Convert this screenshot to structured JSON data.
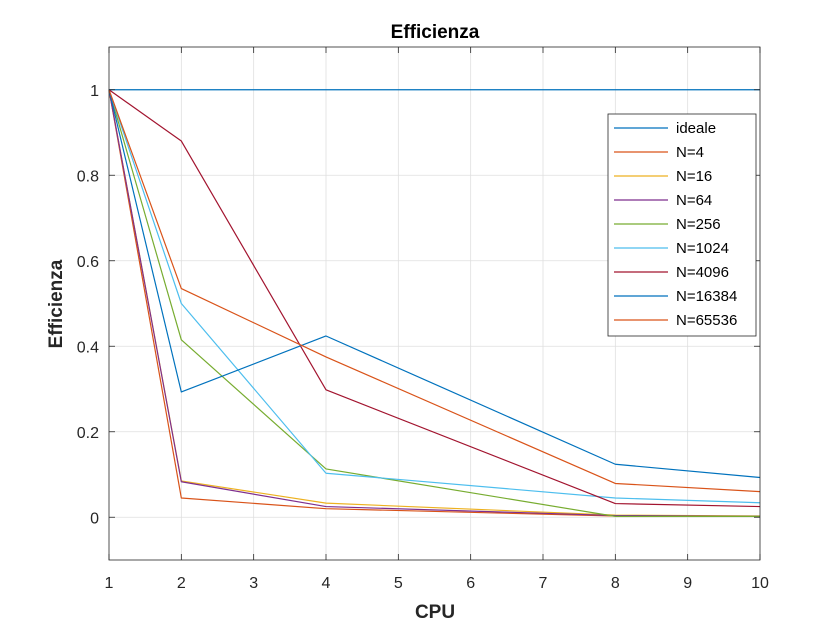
{
  "chart_data": {
    "type": "line",
    "title": "Efficienza",
    "xlabel": "CPU",
    "ylabel": "Efficienza",
    "xlim": [
      1,
      10
    ],
    "ylim": [
      -0.1,
      1.1
    ],
    "xticks": [
      1,
      2,
      3,
      4,
      5,
      6,
      7,
      8,
      9,
      10
    ],
    "yticks": [
      0,
      0.2,
      0.4,
      0.6,
      0.8,
      1
    ],
    "ytick_labels": [
      "0",
      "0.2",
      "0.4",
      "0.6",
      "0.8",
      "1"
    ],
    "grid": true,
    "legend_position": "top-right",
    "series": [
      {
        "name": "ideale",
        "color": "#0072BD",
        "x": [
          1,
          10
        ],
        "y": [
          1,
          1
        ]
      },
      {
        "name": "N=4",
        "color": "#D95319",
        "x": [
          1,
          2,
          4,
          8,
          10
        ],
        "y": [
          1,
          0.045,
          0.02,
          0.003,
          0.002
        ]
      },
      {
        "name": "N=16",
        "color": "#EDB120",
        "x": [
          1,
          2,
          4,
          8,
          10
        ],
        "y": [
          1,
          0.085,
          0.033,
          0.005,
          0.003
        ]
      },
      {
        "name": "N=64",
        "color": "#7E2F8E",
        "x": [
          1,
          2,
          4,
          8,
          10
        ],
        "y": [
          1,
          0.083,
          0.025,
          0.004,
          0.002
        ]
      },
      {
        "name": "N=256",
        "color": "#77AC30",
        "x": [
          1,
          2,
          4,
          8,
          10
        ],
        "y": [
          1,
          0.415,
          0.113,
          0.002,
          0.002
        ]
      },
      {
        "name": "N=1024",
        "color": "#4DBEEE",
        "x": [
          1,
          2,
          4,
          8,
          10
        ],
        "y": [
          1,
          0.5,
          0.103,
          0.045,
          0.034
        ]
      },
      {
        "name": "N=4096",
        "color": "#A2142F",
        "x": [
          1,
          2,
          4,
          8,
          10
        ],
        "y": [
          1,
          0.88,
          0.298,
          0.032,
          0.025
        ]
      },
      {
        "name": "N=16384",
        "color": "#0072BD",
        "x": [
          1,
          2,
          4,
          8,
          10
        ],
        "y": [
          1,
          0.293,
          0.424,
          0.124,
          0.093
        ]
      },
      {
        "name": "N=65536",
        "color": "#D95319",
        "x": [
          1,
          2,
          4,
          8,
          10
        ],
        "y": [
          1,
          0.535,
          0.375,
          0.079,
          0.06
        ]
      }
    ]
  }
}
